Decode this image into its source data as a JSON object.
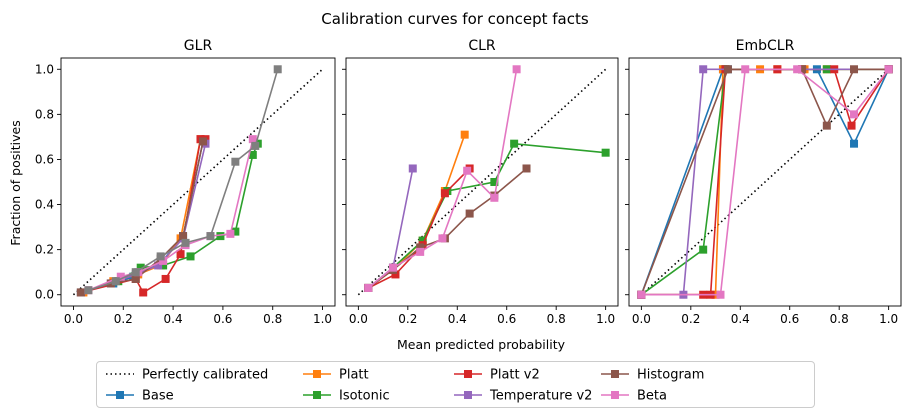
{
  "chart_data": {
    "type": "line",
    "title": "Calibration curves for concept facts",
    "xlabel": "Mean predicted probability",
    "ylabel": "Fraction of positives",
    "xlim": [
      -0.05,
      1.05
    ],
    "ylim": [
      -0.05,
      1.05
    ],
    "x_ticks": [
      "0.0",
      "0.2",
      "0.4",
      "0.6",
      "0.8",
      "1.0"
    ],
    "y_ticks": [
      "0.0",
      "0.2",
      "0.4",
      "0.6",
      "0.8",
      "1.0"
    ],
    "grid": false,
    "legend_position": "bottom-center",
    "reference": {
      "name": "Perfectly calibrated",
      "x": [
        0,
        1
      ],
      "y": [
        0,
        1
      ],
      "style": "dotted",
      "color": "#000000"
    },
    "series_styles": [
      {
        "name": "Base",
        "color": "#1f77b4"
      },
      {
        "name": "Platt",
        "color": "#ff7f0e"
      },
      {
        "name": "Isotonic",
        "color": "#2ca02c"
      },
      {
        "name": "Platt v2",
        "color": "#d62728"
      },
      {
        "name": "Temperature v2",
        "color": "#9467bd"
      },
      {
        "name": "Histogram",
        "color": "#8c564b"
      },
      {
        "name": "Beta",
        "color": "#e377c2"
      }
    ],
    "panels": [
      {
        "title": "GLR",
        "series": [
          {
            "name": "Base",
            "x": [
              0.03,
              0.16,
              0.24,
              0.35,
              0.44,
              0.52
            ],
            "y": [
              0.01,
              0.05,
              0.08,
              0.14,
              0.26,
              0.68
            ]
          },
          {
            "name": "Platt",
            "x": [
              0.04,
              0.16,
              0.26,
              0.35,
              0.43,
              0.51
            ],
            "y": [
              0.01,
              0.06,
              0.09,
              0.13,
              0.25,
              0.69
            ]
          },
          {
            "name": "Isotonic",
            "x": [
              0.03,
              0.18,
              0.27,
              0.36,
              0.47,
              0.59,
              0.65,
              0.72,
              0.74
            ],
            "y": [
              0.01,
              0.06,
              0.12,
              0.13,
              0.17,
              0.26,
              0.28,
              0.62,
              0.67
            ]
          },
          {
            "name": "Platt v2",
            "x": [
              0.03,
              0.25,
              0.28,
              0.37,
              0.43,
              0.51,
              0.53
            ],
            "y": [
              0.01,
              0.07,
              0.01,
              0.07,
              0.18,
              0.69,
              0.69
            ]
          },
          {
            "name": "Temperature v2",
            "x": [
              0.03,
              0.15,
              0.25,
              0.34,
              0.44,
              0.53
            ],
            "y": [
              0.01,
              0.05,
              0.09,
              0.13,
              0.25,
              0.67
            ]
          },
          {
            "name": "Histogram",
            "x": [
              0.03,
              0.15,
              0.25,
              0.35,
              0.44,
              0.52
            ],
            "y": [
              0.01,
              0.05,
              0.07,
              0.16,
              0.26,
              0.68
            ]
          },
          {
            "name": "Beta",
            "x": [
              0.06,
              0.19,
              0.26,
              0.36,
              0.45,
              0.55,
              0.63,
              0.72
            ],
            "y": [
              0.02,
              0.08,
              0.1,
              0.15,
              0.22,
              0.26,
              0.27,
              0.69
            ]
          },
          {
            "name": "",
            "color": "#7f7f7f",
            "x": [
              0.06,
              0.17,
              0.25,
              0.35,
              0.45,
              0.55,
              0.65,
              0.73,
              0.82
            ],
            "y": [
              0.02,
              0.06,
              0.1,
              0.17,
              0.23,
              0.26,
              0.59,
              0.66,
              1.0
            ]
          }
        ]
      },
      {
        "title": "CLR",
        "series": [
          {
            "name": "Base",
            "x": [
              0.04,
              0.14
            ],
            "y": [
              0.03,
              0.12
            ]
          },
          {
            "name": "Platt",
            "x": [
              0.04,
              0.14,
              0.26,
              0.35,
              0.43
            ],
            "y": [
              0.03,
              0.11,
              0.24,
              0.46,
              0.71
            ]
          },
          {
            "name": "Isotonic",
            "x": [
              0.04,
              0.14,
              0.26,
              0.36,
              0.55,
              0.63,
              1.0
            ],
            "y": [
              0.03,
              0.12,
              0.24,
              0.46,
              0.5,
              0.67,
              0.63
            ]
          },
          {
            "name": "Platt v2",
            "x": [
              0.04,
              0.15,
              0.26,
              0.35,
              0.45
            ],
            "y": [
              0.03,
              0.09,
              0.22,
              0.45,
              0.56
            ]
          },
          {
            "name": "Temperature v2",
            "x": [
              0.04,
              0.14,
              0.22
            ],
            "y": [
              0.03,
              0.12,
              0.56
            ]
          },
          {
            "name": "Histogram",
            "x": [
              0.04,
              0.14,
              0.25,
              0.35,
              0.45,
              0.55,
              0.68
            ],
            "y": [
              0.03,
              0.11,
              0.21,
              0.25,
              0.36,
              0.44,
              0.56
            ]
          },
          {
            "name": "Beta",
            "x": [
              0.04,
              0.14,
              0.25,
              0.34,
              0.44,
              0.55,
              0.64
            ],
            "y": [
              0.03,
              0.12,
              0.19,
              0.25,
              0.55,
              0.43,
              1.0
            ]
          }
        ]
      },
      {
        "title": "EmbCLR",
        "series": [
          {
            "name": "Base",
            "x": [
              0.0,
              0.33,
              0.35,
              0.65,
              0.71,
              0.86,
              1.0
            ],
            "y": [
              0.0,
              1.0,
              1.0,
              1.0,
              1.0,
              0.67,
              1.0
            ]
          },
          {
            "name": "Platt",
            "x": [
              0.0,
              0.3,
              0.33,
              0.48,
              0.55,
              0.66,
              0.75,
              1.0
            ],
            "y": [
              0.0,
              0.0,
              1.0,
              1.0,
              1.0,
              1.0,
              1.0,
              1.0
            ]
          },
          {
            "name": "Isotonic",
            "x": [
              0.0,
              0.25,
              0.34,
              0.75,
              1.0
            ],
            "y": [
              0.0,
              0.2,
              1.0,
              1.0,
              1.0
            ]
          },
          {
            "name": "Platt v2",
            "x": [
              0.0,
              0.25,
              0.28,
              0.34,
              0.55,
              0.65,
              0.78,
              0.85,
              1.0
            ],
            "y": [
              0.0,
              0.0,
              0.0,
              1.0,
              1.0,
              1.0,
              1.0,
              0.75,
              1.0
            ]
          },
          {
            "name": "Temperature v2",
            "x": [
              0.0,
              0.17,
              0.25,
              1.0
            ],
            "y": [
              0.0,
              0.0,
              1.0,
              1.0
            ]
          },
          {
            "name": "Histogram",
            "x": [
              0.0,
              0.35,
              0.65,
              0.75,
              0.86,
              1.0
            ],
            "y": [
              0.0,
              1.0,
              1.0,
              0.75,
              1.0,
              1.0
            ]
          },
          {
            "name": "Beta",
            "x": [
              0.0,
              0.32,
              0.42,
              0.63,
              0.86,
              1.0
            ],
            "y": [
              0.0,
              0.0,
              1.0,
              1.0,
              0.8,
              1.0
            ]
          }
        ]
      }
    ]
  }
}
